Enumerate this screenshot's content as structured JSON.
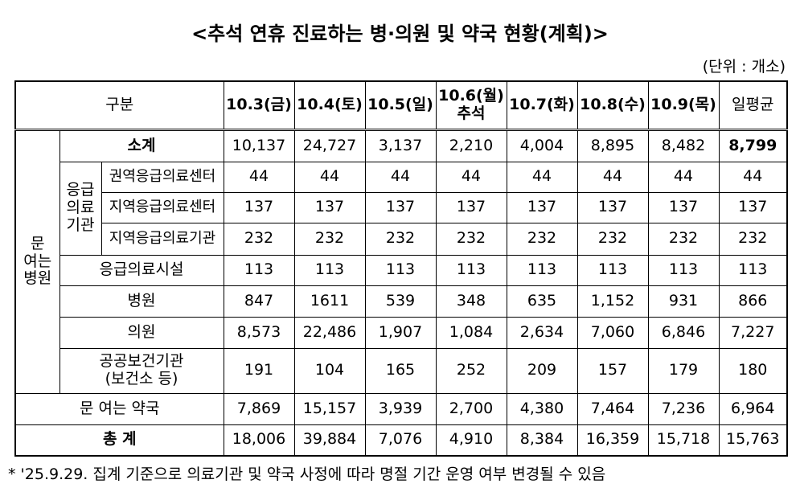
{
  "title": "<추석 연휴 진료하는 병·의원 및 약국 현황(계획)>",
  "unit": "(단위 : 개소)",
  "table": {
    "header": [
      [
        "구분"
      ],
      [
        "10.3(금)"
      ],
      [
        "10.4(토)"
      ],
      [
        "10.5(일)"
      ],
      [
        "10.6(월)",
        "추석"
      ],
      [
        "10.7(화)"
      ],
      [
        "10.8(수)"
      ],
      [
        "10.9(목)"
      ],
      [
        "일평균"
      ]
    ],
    "group_label": [
      "문",
      "여는",
      "병원"
    ],
    "subgroup_label": [
      "응급",
      "의료",
      "기관"
    ],
    "rows": [
      {
        "label": [
          "소계"
        ],
        "values": [
          "10,137",
          "24,727",
          "3,137",
          "2,210",
          "4,004",
          "8,895",
          "8,482",
          "8,799"
        ]
      },
      {
        "label": [
          "권역응급의료센터"
        ],
        "values": [
          "44",
          "44",
          "44",
          "44",
          "44",
          "44",
          "44",
          "44"
        ]
      },
      {
        "label": [
          "지역응급의료센터"
        ],
        "values": [
          "137",
          "137",
          "137",
          "137",
          "137",
          "137",
          "137",
          "137"
        ]
      },
      {
        "label": [
          "지역응급의료기관"
        ],
        "values": [
          "232",
          "232",
          "232",
          "232",
          "232",
          "232",
          "232",
          "232"
        ]
      },
      {
        "label": [
          "응급의료시설"
        ],
        "values": [
          "113",
          "113",
          "113",
          "113",
          "113",
          "113",
          "113",
          "113"
        ]
      },
      {
        "label": [
          "병원"
        ],
        "values": [
          "847",
          "1611",
          "539",
          "348",
          "635",
          "1,152",
          "931",
          "866"
        ]
      },
      {
        "label": [
          "의원"
        ],
        "values": [
          "8,573",
          "22,486",
          "1,907",
          "1,084",
          "2,634",
          "7,060",
          "6,846",
          "7,227"
        ]
      },
      {
        "label": [
          "공공보건기관",
          "(보건소 등)"
        ],
        "values": [
          "191",
          "104",
          "165",
          "252",
          "209",
          "157",
          "179",
          "180"
        ]
      },
      {
        "label": [
          "문 여는 약국"
        ],
        "values": [
          "7,869",
          "15,157",
          "3,939",
          "2,700",
          "4,380",
          "7,464",
          "7,236",
          "6,964"
        ]
      },
      {
        "label": [
          "총 계"
        ],
        "values": [
          "18,006",
          "39,884",
          "7,076",
          "4,910",
          "8,384",
          "16,359",
          "15,718",
          "15,763"
        ]
      }
    ]
  },
  "footnote": "* '25.9.29. 집계 기준으로 의료기관 및 약국 사정에 따라 명절 기간 운영 여부 변경될 수 있음"
}
